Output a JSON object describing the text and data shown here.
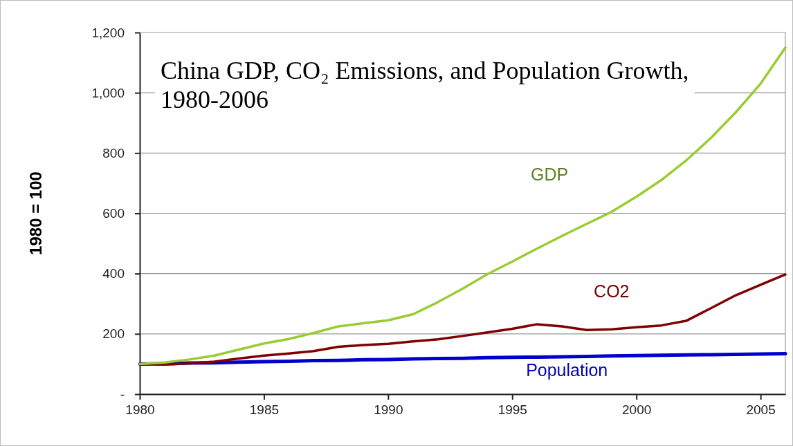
{
  "chart_data": {
    "type": "line",
    "title": "China GDP, CO₂ Emissions, and Population Growth, 1980-2006",
    "ylabel": "1980 = 100",
    "x": [
      1980,
      1981,
      1982,
      1983,
      1984,
      1985,
      1986,
      1987,
      1988,
      1989,
      1990,
      1991,
      1992,
      1993,
      1994,
      1995,
      1996,
      1997,
      1998,
      1999,
      2000,
      2001,
      2002,
      2003,
      2004,
      2005,
      2006
    ],
    "series": [
      {
        "name": "GDP",
        "color": "#99cc33",
        "values": [
          100,
          105,
          115,
          128,
          148,
          168,
          183,
          203,
          225,
          235,
          245,
          265,
          305,
          350,
          398,
          440,
          483,
          525,
          565,
          605,
          655,
          710,
          775,
          850,
          935,
          1030,
          1150
        ]
      },
      {
        "name": "CO2",
        "color": "#800000",
        "values": [
          100,
          98,
          102,
          108,
          118,
          128,
          135,
          143,
          157,
          163,
          167,
          175,
          182,
          193,
          205,
          217,
          232,
          225,
          213,
          215,
          222,
          228,
          243,
          285,
          328,
          363,
          397
        ]
      },
      {
        "name": "Population",
        "color": "#0000cc",
        "values": [
          100,
          101,
          103,
          104,
          106,
          108,
          109,
          111,
          112,
          114,
          115,
          117,
          118,
          119,
          121,
          122,
          123,
          124,
          125,
          127,
          128,
          129,
          130,
          131,
          132,
          133,
          134
        ]
      }
    ],
    "xlim": [
      1980,
      2006
    ],
    "xticks": [
      1980,
      1985,
      1990,
      1995,
      2000,
      2005
    ],
    "ylim": [
      0,
      1200
    ],
    "yticks": [
      {
        "value": 0,
        "label": "-"
      },
      200,
      400,
      600,
      800,
      {
        "value": 1000,
        "label": "1,000"
      },
      {
        "value": 1200,
        "label": "1,200"
      }
    ],
    "grid": "y",
    "marker": "none",
    "line_style": "solid"
  }
}
